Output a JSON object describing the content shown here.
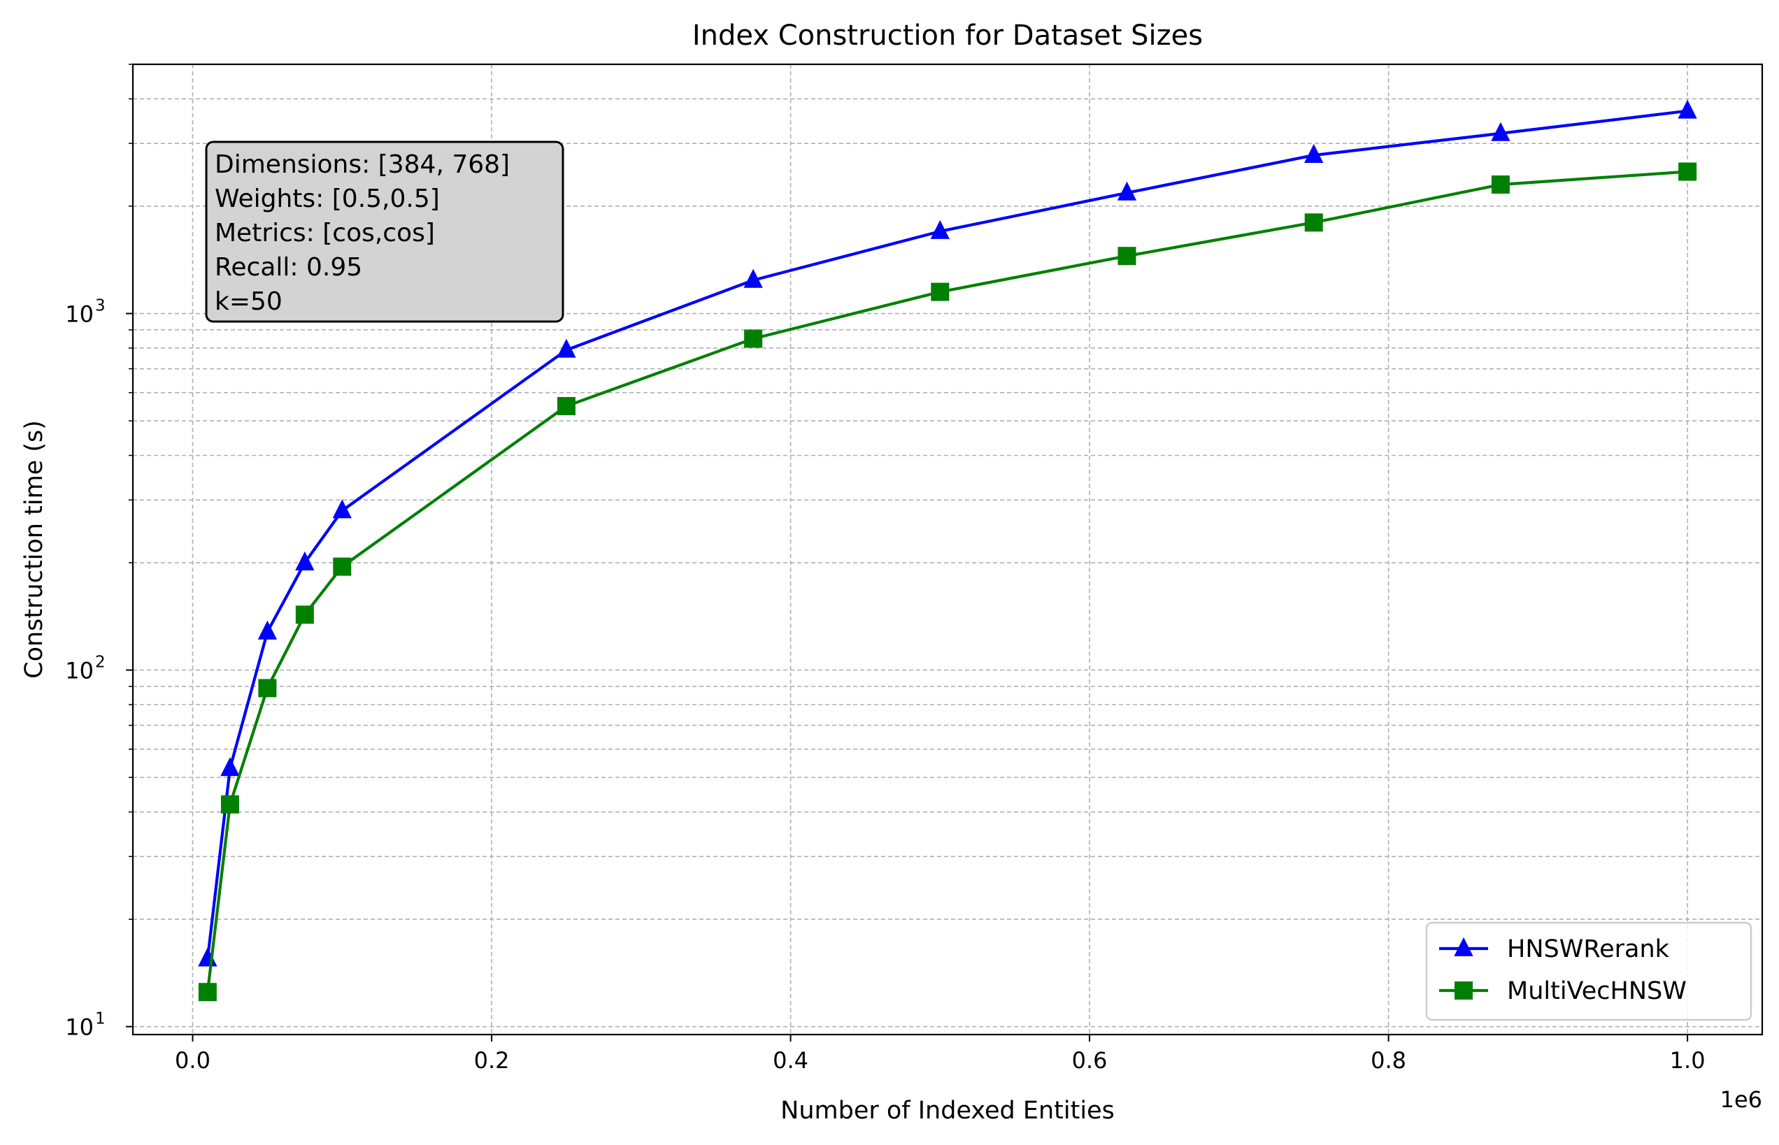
{
  "chart_data": {
    "type": "line",
    "title": "Index Construction for Dataset Sizes",
    "xlabel": "Number of Indexed Entities",
    "ylabel": "Construction time (s)",
    "x_offset_label": "1e6",
    "x_scale": "linear",
    "y_scale": "log",
    "xlim": [
      -40000,
      1050000
    ],
    "ylim": [
      9.5,
      5000
    ],
    "x_ticks": [
      0,
      200000,
      400000,
      600000,
      800000,
      1000000
    ],
    "x_tick_labels": [
      "0.0",
      "0.2",
      "0.4",
      "0.6",
      "0.8",
      "1.0"
    ],
    "y_major_ticks": [
      10,
      100,
      1000
    ],
    "y_tick_labels": [
      {
        "base": "10",
        "exp": "1"
      },
      {
        "base": "10",
        "exp": "2"
      },
      {
        "base": "10",
        "exp": "3"
      }
    ],
    "grid": true,
    "legend_position": "lower-right",
    "series": [
      {
        "name": "HNSWRerank",
        "color": "#0000ff",
        "marker": "triangle",
        "x": [
          10000,
          25000,
          50000,
          75000,
          100000,
          250000,
          375000,
          500000,
          625000,
          750000,
          875000,
          1000000
        ],
        "y": [
          15.5,
          53,
          128,
          200,
          280,
          790,
          1240,
          1700,
          2180,
          2780,
          3200,
          3700
        ]
      },
      {
        "name": "MultiVecHNSW",
        "color": "#008000",
        "marker": "square",
        "x": [
          10000,
          25000,
          50000,
          75000,
          100000,
          250000,
          375000,
          500000,
          625000,
          750000,
          875000,
          1000000
        ],
        "y": [
          12.5,
          42,
          89,
          143,
          195,
          550,
          850,
          1150,
          1450,
          1800,
          2300,
          2500
        ]
      }
    ],
    "annotation": [
      "Dimensions: [384, 768]",
      "Weights: [0.5,0.5]",
      "Metrics: [cos,cos]",
      "Recall: 0.95",
      "k=50"
    ]
  }
}
